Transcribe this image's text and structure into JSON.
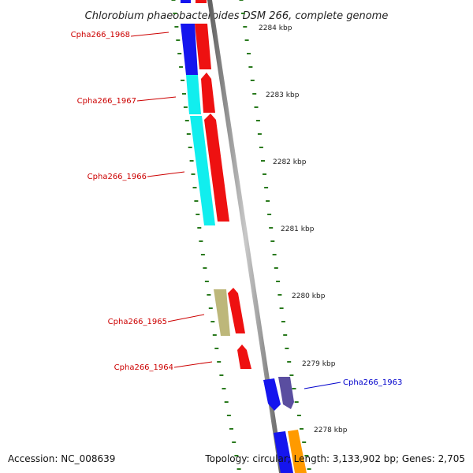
{
  "title": "Chlorobium phaeobacteroides DSM 266, complete genome",
  "footer": {
    "accession": "Accession: NC_008639",
    "topology": "Topology: circular; Length: 3,133,902 bp; Genes: 2,705"
  },
  "colors": {
    "backbone": "#888888",
    "tick": "#2a7a1e",
    "forward_label": "#cc0000",
    "reverse_label": "#0000cc",
    "blue": "#1515ee",
    "cyan": "#11eeee",
    "red": "#ee1111",
    "khaki": "#bdb77a",
    "slate": "#5a4ea0",
    "orange": "#ff9a00"
  },
  "kbp_markers": [
    {
      "kbp": 2284,
      "label": "2284 kbp"
    },
    {
      "kbp": 2283,
      "label": "2283 kbp"
    },
    {
      "kbp": 2282,
      "label": "2282 kbp"
    },
    {
      "kbp": 2281,
      "label": "2281 kbp"
    },
    {
      "kbp": 2280,
      "label": "2280 kbp"
    },
    {
      "kbp": 2279,
      "label": "2279 kbp"
    },
    {
      "kbp": 2278,
      "label": "2278 kbp"
    }
  ],
  "genes": [
    {
      "id": "Cpha266_1968",
      "label": "Cpha266_1968",
      "strand": "forward"
    },
    {
      "id": "Cpha266_1967",
      "label": "Cpha266_1967",
      "strand": "forward"
    },
    {
      "id": "Cpha266_1966",
      "label": "Cpha266_1966",
      "strand": "forward"
    },
    {
      "id": "Cpha266_1965",
      "label": "Cpha266_1965",
      "strand": "forward"
    },
    {
      "id": "Cpha266_1964",
      "label": "Cpha266_1964",
      "strand": "forward"
    },
    {
      "id": "Cpha266_1963",
      "label": "Cpha266_1963",
      "strand": "reverse"
    }
  ]
}
